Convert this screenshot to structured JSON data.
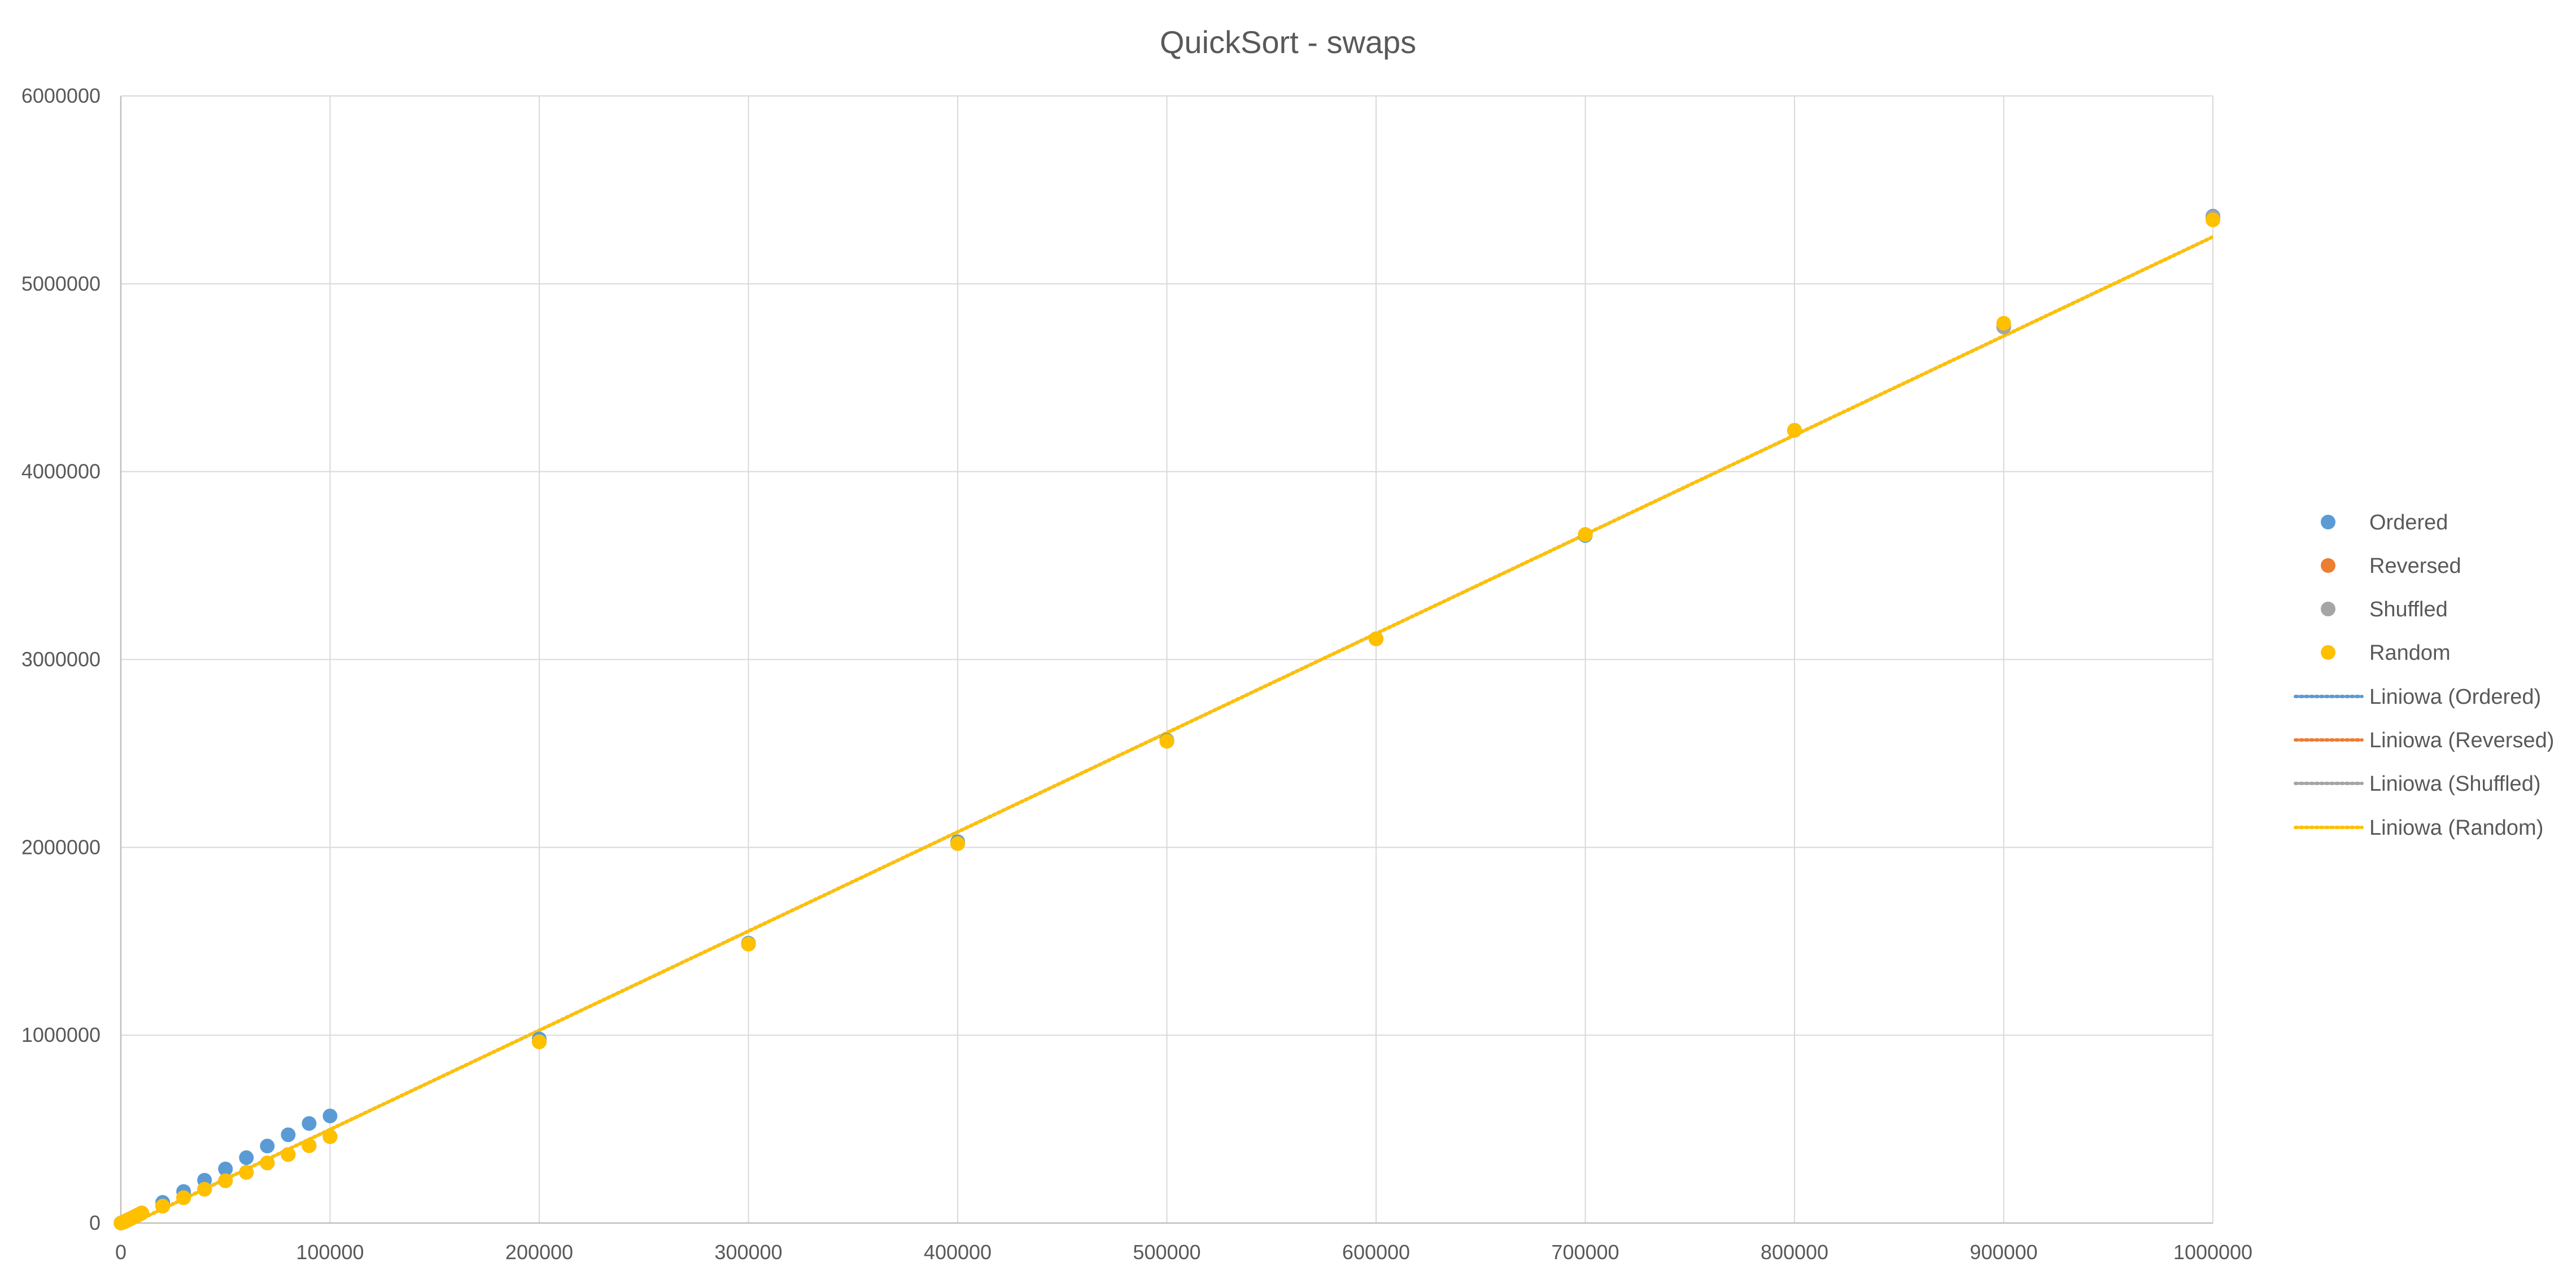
{
  "chart_data": {
    "type": "scatter",
    "title": "QuickSort - swaps",
    "xlabel": "",
    "ylabel": "",
    "xlim": [
      0,
      1000000
    ],
    "ylim": [
      0,
      6000000
    ],
    "x_ticks": [
      0,
      100000,
      200000,
      300000,
      400000,
      500000,
      600000,
      700000,
      800000,
      900000,
      1000000
    ],
    "y_ticks": [
      0,
      1000000,
      2000000,
      3000000,
      4000000,
      5000000,
      6000000
    ],
    "x_tick_labels": [
      "0",
      "100000",
      "200000",
      "300000",
      "400000",
      "500000",
      "600000",
      "700000",
      "800000",
      "900000",
      "1000000"
    ],
    "y_tick_labels": [
      "0",
      "1000000",
      "2000000",
      "3000000",
      "4000000",
      "5000000",
      "6000000"
    ],
    "grid": true,
    "legend_position": "right",
    "series": [
      {
        "name": "Ordered",
        "color": "#5B9BD5",
        "x": [
          100,
          1000,
          2000,
          3000,
          4000,
          5000,
          6000,
          7000,
          8000,
          9000,
          10000,
          20000,
          30000,
          40000,
          50000,
          60000,
          70000,
          80000,
          90000,
          100000,
          200000,
          300000,
          400000,
          500000,
          600000,
          700000,
          800000,
          900000,
          1000000
        ],
        "y": [
          300,
          4200,
          9200,
          14500,
          19800,
          25200,
          30800,
          36400,
          42000,
          47700,
          53500,
          110000,
          168000,
          228000,
          288000,
          348000,
          410000,
          470000,
          530000,
          570000,
          980000,
          1490000,
          2030000,
          2570000,
          3110000,
          3660000,
          4220000,
          4770000,
          5360000
        ]
      },
      {
        "name": "Reversed",
        "color": "#ED7D31",
        "x": [
          100,
          1000,
          2000,
          3000,
          4000,
          5000,
          6000,
          7000,
          8000,
          9000,
          10000,
          20000,
          30000,
          40000,
          50000,
          60000,
          70000,
          80000,
          90000,
          100000,
          200000,
          300000,
          400000,
          500000,
          600000,
          700000,
          800000,
          900000,
          1000000
        ],
        "y": [
          300,
          4200,
          9200,
          14500,
          19800,
          25200,
          30800,
          36400,
          42000,
          47700,
          53500,
          90000,
          135000,
          180000,
          225000,
          270000,
          320000,
          365000,
          412000,
          460000,
          965000,
          1485000,
          2020000,
          2565000,
          3110000,
          3665000,
          4220000,
          4775000,
          5350000
        ]
      },
      {
        "name": "Shuffled",
        "color": "#A5A5A5",
        "x": [
          100,
          1000,
          2000,
          3000,
          4000,
          5000,
          6000,
          7000,
          8000,
          9000,
          10000,
          20000,
          30000,
          40000,
          50000,
          60000,
          70000,
          80000,
          90000,
          100000,
          200000,
          300000,
          400000,
          500000,
          600000,
          700000,
          800000,
          900000,
          1000000
        ],
        "y": [
          300,
          4200,
          9200,
          14500,
          19800,
          25200,
          30800,
          36400,
          42000,
          47700,
          53500,
          90000,
          135000,
          180000,
          225000,
          270000,
          320000,
          365000,
          412000,
          460000,
          965000,
          1485000,
          2020000,
          2565000,
          3110000,
          3665000,
          4220000,
          4770000,
          5355000
        ]
      },
      {
        "name": "Random",
        "color": "#FFC000",
        "x": [
          100,
          1000,
          2000,
          3000,
          4000,
          5000,
          6000,
          7000,
          8000,
          9000,
          10000,
          20000,
          30000,
          40000,
          50000,
          60000,
          70000,
          80000,
          90000,
          100000,
          200000,
          300000,
          400000,
          500000,
          600000,
          700000,
          800000,
          900000,
          1000000
        ],
        "y": [
          300,
          4200,
          9200,
          14500,
          19800,
          25200,
          30800,
          36400,
          42000,
          47700,
          53500,
          90000,
          135000,
          180000,
          225000,
          270000,
          320000,
          365000,
          412000,
          460000,
          965000,
          1485000,
          2020000,
          2565000,
          3110000,
          3665000,
          4220000,
          4790000,
          5340000
        ]
      }
    ],
    "trendlines": [
      {
        "name": "Liniowa (Ordered)",
        "color": "#5B9BD5",
        "x": [
          0,
          1000000
        ],
        "y": [
          -30000,
          5250000
        ]
      },
      {
        "name": "Liniowa (Reversed)",
        "color": "#ED7D31",
        "x": [
          0,
          1000000
        ],
        "y": [
          -30000,
          5250000
        ]
      },
      {
        "name": "Liniowa (Shuffled)",
        "color": "#A5A5A5",
        "x": [
          0,
          1000000
        ],
        "y": [
          -30000,
          5250000
        ]
      },
      {
        "name": "Liniowa (Random)",
        "color": "#FFC000",
        "x": [
          0,
          1000000
        ],
        "y": [
          -30000,
          5250000
        ]
      }
    ]
  }
}
